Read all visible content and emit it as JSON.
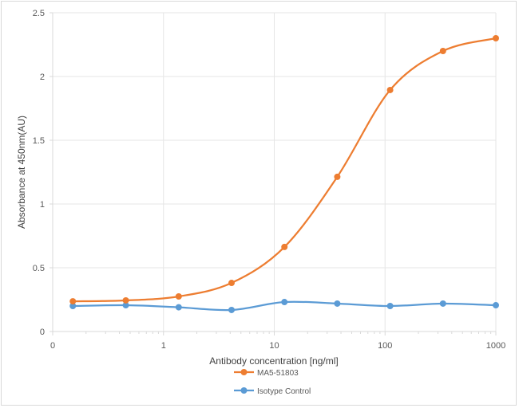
{
  "chart_data": {
    "type": "line",
    "title": "",
    "xlabel": "Antibody concentration [ng/ml]",
    "ylabel": "Absorbance at 450nm(AU)",
    "x_scale": "log",
    "xlim": [
      0.1,
      1000
    ],
    "ylim": [
      0,
      2.5
    ],
    "x_tick_labels": [
      "0",
      "1",
      "10",
      "100",
      "1000"
    ],
    "x_tick_values": [
      0.1,
      1,
      10,
      100,
      1000
    ],
    "y_tick_labels": [
      "0",
      "0.5",
      "1",
      "1.5",
      "2",
      "2.5"
    ],
    "y_tick_values": [
      0,
      0.5,
      1,
      1.5,
      2,
      2.5
    ],
    "grid": true,
    "legend_position": "bottom",
    "x": [
      0.152,
      0.457,
      1.372,
      4.115,
      12.35,
      37.04,
      111.1,
      333.3,
      1000
    ],
    "series": [
      {
        "name": "MA5-51803",
        "color": "#ED7D31",
        "values": [
          0.237,
          0.244,
          0.275,
          0.381,
          0.663,
          1.213,
          1.894,
          2.2,
          2.3
        ]
      },
      {
        "name": "Isotype Control",
        "color": "#5B9BD5",
        "values": [
          0.2,
          0.206,
          0.19,
          0.169,
          0.231,
          0.219,
          0.2,
          0.219,
          0.206
        ]
      }
    ]
  }
}
